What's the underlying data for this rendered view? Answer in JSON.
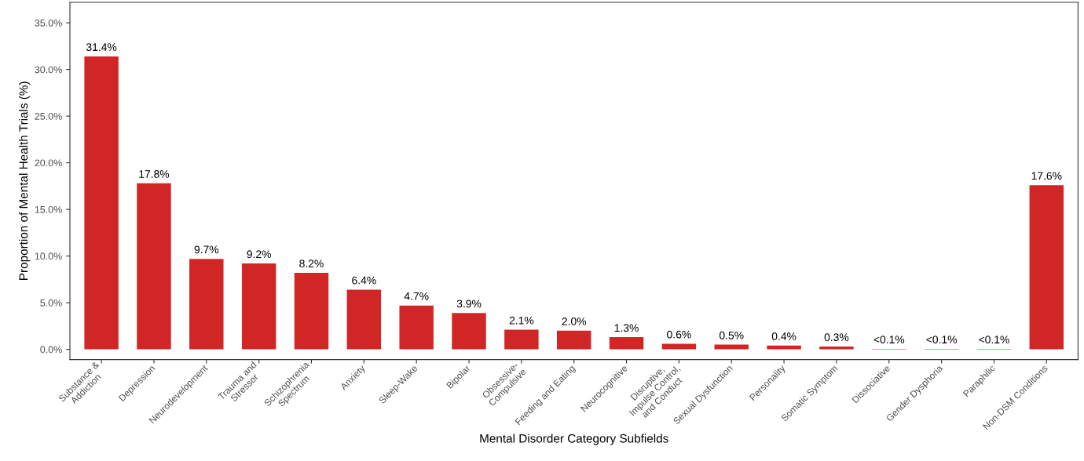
{
  "chart_data": {
    "type": "bar",
    "xlabel": "Mental Disorder Category Subfields",
    "ylabel": "Proportion of Mental Health Trials (%)",
    "categories": [
      "Substance &\nAddiction",
      "Depression",
      "Neurodevelopment",
      "Trauma and\nStressor",
      "Schizophrenia\nSpectrum",
      "Anxiety",
      "Sleep-Wake",
      "Bipolar",
      "Obsessive-\nCompulsive",
      "Feeding and Eating",
      "Neurocognitive",
      "Disruptive,\nImpulse Control,\nand Conduct",
      "Sexual Dysfunction",
      "Personality",
      "Somatic Symptom",
      "Dissociative",
      "Gender Dysphoria",
      "Paraphilic",
      "Non-DSM Conditions"
    ],
    "values": [
      31.4,
      17.8,
      9.7,
      9.2,
      8.2,
      6.4,
      4.7,
      3.9,
      2.1,
      2.0,
      1.3,
      0.6,
      0.5,
      0.4,
      0.3,
      0.05,
      0.05,
      0.05,
      17.6
    ],
    "value_labels": [
      "31.4%",
      "17.8%",
      "9.7%",
      "9.2%",
      "8.2%",
      "6.4%",
      "4.7%",
      "3.9%",
      "2.1%",
      "2.0%",
      "1.3%",
      "0.6%",
      "0.5%",
      "0.4%",
      "0.3%",
      "<0.1%",
      "<0.1%",
      "<0.1%",
      "17.6%"
    ],
    "color": "#d12626",
    "ylim": [
      -1.1,
      37.2
    ],
    "yticks": [
      {
        "value": 0,
        "label": "0.0%"
      },
      {
        "value": 5,
        "label": "5.0%"
      },
      {
        "value": 10,
        "label": "10.0%"
      },
      {
        "value": 15,
        "label": "15.0%"
      },
      {
        "value": 20,
        "label": "20.0%"
      },
      {
        "value": 25,
        "label": "25.0%"
      },
      {
        "value": 30,
        "label": "30.0%"
      },
      {
        "value": 35,
        "label": "35.0%"
      }
    ],
    "grid": false
  }
}
